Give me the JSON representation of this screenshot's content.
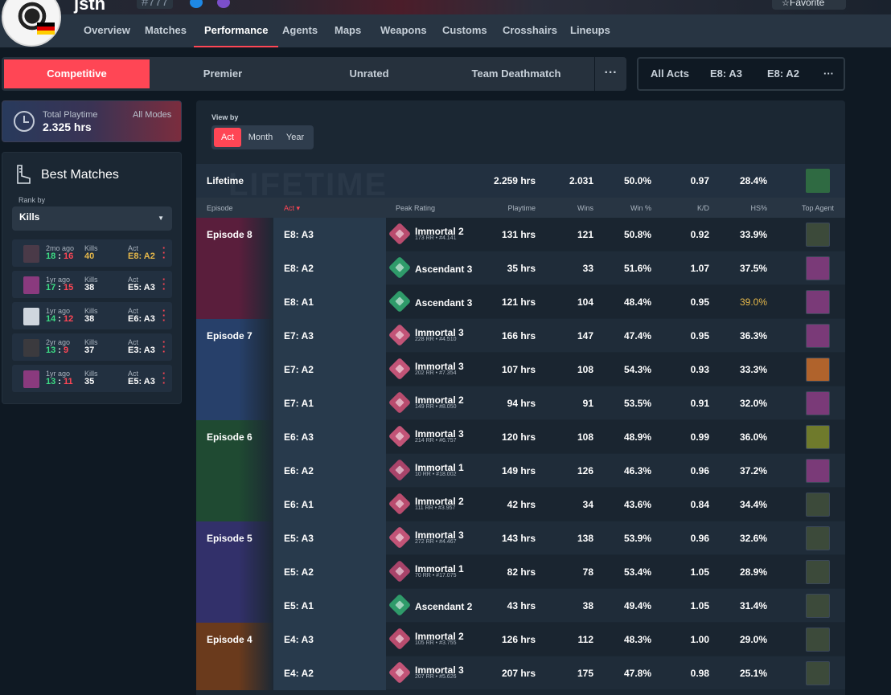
{
  "header": {
    "name": "jsth",
    "tag": "#777",
    "favorite_label": "Favorite",
    "nav": [
      "Overview",
      "Matches",
      "Performance",
      "Agents",
      "Maps",
      "Weapons",
      "Customs",
      "Crosshairs",
      "Lineups"
    ],
    "active_nav": "Performance",
    "flag_colors": [
      "#000000",
      "#dd0000",
      "#ffce00"
    ]
  },
  "modes": {
    "tabs": [
      "Competitive",
      "Premier",
      "Unrated",
      "Team Deathmatch"
    ],
    "active": "Competitive",
    "more": "···"
  },
  "acts_filter": {
    "tabs": [
      "All Acts",
      "E8: A3",
      "E8: A2"
    ],
    "more": "···"
  },
  "playtime": {
    "label": "Total Playtime",
    "value": "2.325 hrs",
    "modes": "All Modes"
  },
  "best_matches": {
    "title": "Best Matches",
    "rank_by_label": "Rank by",
    "rank_by_value": "Kills",
    "matches": [
      {
        "ago": "2mo ago",
        "won": "18",
        "lost": "16",
        "kills_label": "Kills",
        "kills": "40",
        "act_label": "Act",
        "act": "E8: A2",
        "win": true,
        "agent_color": "#4a3a48",
        "highlight": true
      },
      {
        "ago": "1yr ago",
        "won": "17",
        "lost": "15",
        "kills_label": "Kills",
        "kills": "38",
        "act_label": "Act",
        "act": "E5: A3",
        "win": true,
        "agent_color": "#8a3a7e",
        "highlight": false
      },
      {
        "ago": "1yr ago",
        "won": "14",
        "lost": "12",
        "kills_label": "Kills",
        "kills": "38",
        "act_label": "Act",
        "act": "E6: A3",
        "win": true,
        "agent_color": "#cfd6de",
        "highlight": false
      },
      {
        "ago": "2yr ago",
        "won": "13",
        "lost": "9",
        "kills_label": "Kills",
        "kills": "37",
        "act_label": "Act",
        "act": "E3: A3",
        "win": true,
        "agent_color": "#3b3a3e",
        "highlight": false
      },
      {
        "ago": "1yr ago",
        "won": "13",
        "lost": "11",
        "kills_label": "Kills",
        "kills": "35",
        "act_label": "Act",
        "act": "E5: A3",
        "win": true,
        "agent_color": "#8a3a7e",
        "highlight": false
      }
    ]
  },
  "view_by": {
    "label": "View by",
    "options": [
      "Act",
      "Month",
      "Year"
    ],
    "active": "Act"
  },
  "lifetime": {
    "label": "Lifetime",
    "watermark": "LIFETIME",
    "playtime": "2.259 hrs",
    "wins": "2.031",
    "win_pct": "50.0%",
    "kd": "0.97",
    "hs": "28.4%"
  },
  "table": {
    "headers": [
      "Episode",
      "Act",
      "Peak Rating",
      "Playtime",
      "Wins",
      "Win %",
      "K/D",
      "HS%",
      "Top Agent"
    ],
    "sort_column": "Act",
    "rows": [
      {
        "episode": "Episode 8",
        "act": "E8: A3",
        "rank": "Immortal 2",
        "rr": "173 RR • #4.141",
        "playtime": "131 hrs",
        "wins": "121",
        "win_pct": "50.8%",
        "kd": "0.92",
        "hs": "33.9%",
        "ep_color": "#5a1e3c",
        "rank_color": "#b94c6e",
        "agent_color": "#3c4a3a"
      },
      {
        "episode": "",
        "act": "E8: A2",
        "rank": "Ascendant 3",
        "rr": "",
        "playtime": "35 hrs",
        "wins": "33",
        "win_pct": "51.6%",
        "kd": "1.07",
        "hs": "37.5%",
        "ep_color": "#5a1e3c",
        "rank_color": "#2f9b6a",
        "agent_color": "#7a3a78"
      },
      {
        "episode": "",
        "act": "E8: A1",
        "rank": "Ascendant 3",
        "rr": "",
        "playtime": "121 hrs",
        "wins": "104",
        "win_pct": "48.4%",
        "kd": "0.95",
        "hs": "39.0%",
        "hs_highlight": true,
        "ep_color": "#5a1e3c",
        "rank_color": "#2f9b6a",
        "agent_color": "#7a3a78"
      },
      {
        "episode": "Episode 7",
        "act": "E7: A3",
        "rank": "Immortal 3",
        "rr": "228 RR • #4.510",
        "playtime": "166 hrs",
        "wins": "147",
        "win_pct": "47.4%",
        "kd": "0.95",
        "hs": "36.3%",
        "ep_color": "#27406a",
        "rank_color": "#c25477",
        "agent_color": "#7a3a78"
      },
      {
        "episode": "",
        "act": "E7: A2",
        "rank": "Immortal 3",
        "rr": "202 RR • #7.354",
        "playtime": "107 hrs",
        "wins": "108",
        "win_pct": "54.3%",
        "kd": "0.93",
        "hs": "33.3%",
        "ep_color": "#27406a",
        "rank_color": "#c25477",
        "agent_color": "#b0632c"
      },
      {
        "episode": "",
        "act": "E7: A1",
        "rank": "Immortal 2",
        "rr": "149 RR • #8.050",
        "playtime": "94 hrs",
        "wins": "91",
        "win_pct": "53.5%",
        "kd": "0.91",
        "hs": "32.0%",
        "ep_color": "#27406a",
        "rank_color": "#b94c6e",
        "agent_color": "#7a3a78"
      },
      {
        "episode": "Episode 6",
        "act": "E6: A3",
        "rank": "Immortal 3",
        "rr": "214 RR • #6.757",
        "playtime": "120 hrs",
        "wins": "108",
        "win_pct": "48.9%",
        "kd": "0.99",
        "hs": "36.0%",
        "ep_color": "#1f4a32",
        "rank_color": "#c25477",
        "agent_color": "#6f7a2c"
      },
      {
        "episode": "",
        "act": "E6: A2",
        "rank": "Immortal 1",
        "rr": "10 RR • #18.002",
        "playtime": "149 hrs",
        "wins": "126",
        "win_pct": "46.3%",
        "kd": "0.96",
        "hs": "37.2%",
        "ep_color": "#1f4a32",
        "rank_color": "#a9446a",
        "agent_color": "#7a3a78"
      },
      {
        "episode": "",
        "act": "E6: A1",
        "rank": "Immortal 2",
        "rr": "111 RR • #3.957",
        "playtime": "42 hrs",
        "wins": "34",
        "win_pct": "43.6%",
        "kd": "0.84",
        "hs": "34.4%",
        "ep_color": "#1f4a32",
        "rank_color": "#b94c6e",
        "agent_color": "#3c4a3a"
      },
      {
        "episode": "Episode 5",
        "act": "E5: A3",
        "rank": "Immortal 3",
        "rr": "272 RR • #4.467",
        "playtime": "143 hrs",
        "wins": "138",
        "win_pct": "53.9%",
        "kd": "0.96",
        "hs": "32.6%",
        "ep_color": "#32306a",
        "rank_color": "#c25477",
        "agent_color": "#3c4a3a"
      },
      {
        "episode": "",
        "act": "E5: A2",
        "rank": "Immortal 1",
        "rr": "70 RR • #17.075",
        "playtime": "82 hrs",
        "wins": "78",
        "win_pct": "53.4%",
        "kd": "1.05",
        "hs": "28.9%",
        "ep_color": "#32306a",
        "rank_color": "#a9446a",
        "agent_color": "#3c4a3a"
      },
      {
        "episode": "",
        "act": "E5: A1",
        "rank": "Ascendant 2",
        "rr": "",
        "playtime": "43 hrs",
        "wins": "38",
        "win_pct": "49.4%",
        "kd": "1.05",
        "hs": "31.4%",
        "ep_color": "#32306a",
        "rank_color": "#2f9b6a",
        "agent_color": "#3c4a3a"
      },
      {
        "episode": "Episode 4",
        "act": "E4: A3",
        "rank": "Immortal 2",
        "rr": "105 RR • #3.755",
        "playtime": "126 hrs",
        "wins": "112",
        "win_pct": "48.3%",
        "kd": "1.00",
        "hs": "29.0%",
        "ep_color": "#6a3a1c",
        "rank_color": "#b94c6e",
        "agent_color": "#3c4a3a"
      },
      {
        "episode": "",
        "act": "E4: A2",
        "rank": "Immortal 3",
        "rr": "207 RR • #5.626",
        "playtime": "207 hrs",
        "wins": "175",
        "win_pct": "47.8%",
        "kd": "0.98",
        "hs": "25.1%",
        "ep_color": "#6a3a1c",
        "rank_color": "#c25477",
        "agent_color": "#3c4a3a"
      }
    ]
  },
  "colors": {
    "accent": "#ff4655",
    "win_green": "#3ddc84",
    "loss_red": "#ff4655",
    "gold": "#e6b84a"
  }
}
